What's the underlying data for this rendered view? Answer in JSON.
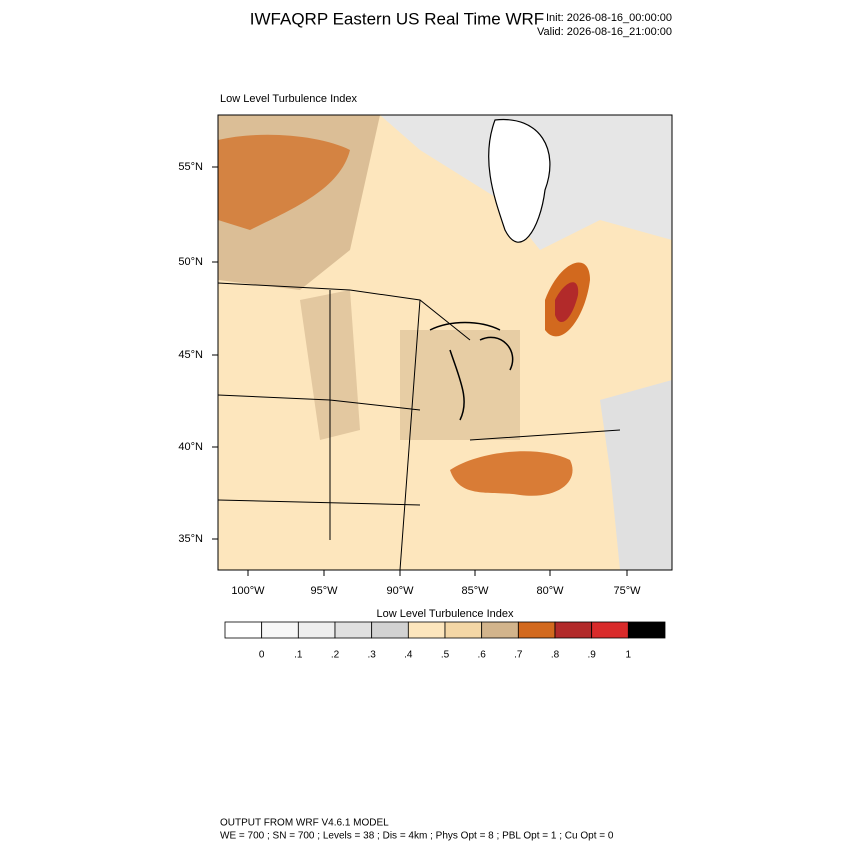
{
  "header": {
    "title": "IWFAQRP Eastern US Real Time WRF",
    "init": "Init: 2026-08-16_00:00:00",
    "valid": "Valid: 2026-08-16_21:00:00"
  },
  "map": {
    "subtitle": "Low Level Turbulence Index",
    "lat_labels": [
      "55°N",
      "50°N",
      "45°N",
      "40°N",
      "35°N"
    ],
    "lon_labels": [
      "100°W",
      "95°W",
      "90°W",
      "85°W",
      "80°W",
      "75°W"
    ]
  },
  "colorbar": {
    "title": "Low Level Turbulence Index",
    "colors": [
      "#ffffff",
      "#f7f7f7",
      "#eeeeee",
      "#e0e0e0",
      "#d2d2d2",
      "#fde6bd",
      "#f4d7a6",
      "#d2b48c",
      "#d2691e",
      "#b22a2a",
      "#d92b2b",
      "#000000"
    ],
    "labels": [
      "0",
      ".1",
      ".2",
      ".3",
      ".4",
      ".5",
      ".6",
      ".7",
      ".8",
      ".9",
      "1"
    ]
  },
  "footer": {
    "line1": "OUTPUT FROM WRF V4.6.1 MODEL",
    "line2": "WE = 700 ; SN = 700 ; Levels = 38 ; Dis = 4km ; Phys Opt = 8 ; PBL Opt = 1 ; Cu Opt = 0"
  }
}
